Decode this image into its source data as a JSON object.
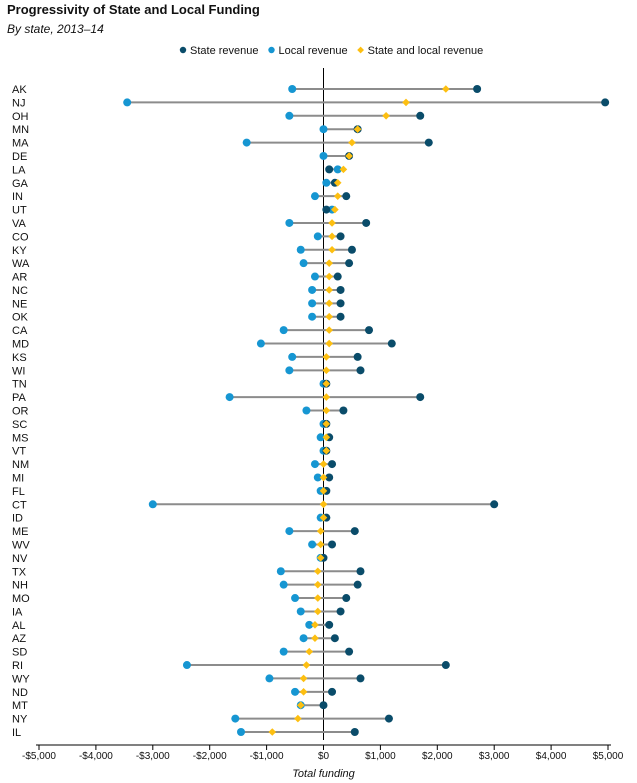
{
  "chart_data": {
    "type": "dumbbell",
    "title": "Progressivity of State and Local Funding",
    "subtitle": "By state, 2013–14",
    "xlabel": "Total funding",
    "ylabel": "",
    "xlim": [
      -5000,
      5000
    ],
    "x_ticks": [
      -5000,
      -4000,
      -3000,
      -2000,
      -1000,
      0,
      1000,
      2000,
      3000,
      4000,
      5000
    ],
    "x_tick_labels": [
      "-$5,000",
      "-$4,000",
      "-$3,000",
      "-$2,000",
      "-$1,000",
      "$0",
      "$1,000",
      "$2,000",
      "$3,000",
      "$4,000",
      "$5,000"
    ],
    "legend_position": "top-center",
    "grid": false,
    "colors": {
      "state": "#0a4c6a",
      "local": "#1696d2",
      "combined": "#fdbf11",
      "connector": "#8c8c8c"
    },
    "series": [
      {
        "name": "State revenue",
        "key": "state"
      },
      {
        "name": "Local revenue",
        "key": "local"
      },
      {
        "name": "State and local revenue",
        "key": "combined"
      }
    ],
    "states": [
      {
        "label": "AK",
        "state": 2700,
        "local": -550,
        "combined": 2150
      },
      {
        "label": "NJ",
        "state": 4950,
        "local": -3450,
        "combined": 1450
      },
      {
        "label": "OH",
        "state": 1700,
        "local": -600,
        "combined": 1100
      },
      {
        "label": "MN",
        "state": 600,
        "local": 0,
        "combined": 600
      },
      {
        "label": "MA",
        "state": 1850,
        "local": -1350,
        "combined": 500
      },
      {
        "label": "DE",
        "state": 450,
        "local": 0,
        "combined": 450
      },
      {
        "label": "LA",
        "state": 100,
        "local": 250,
        "combined": 350
      },
      {
        "label": "GA",
        "state": 200,
        "local": 50,
        "combined": 250
      },
      {
        "label": "IN",
        "state": 400,
        "local": -150,
        "combined": 250
      },
      {
        "label": "UT",
        "state": 50,
        "local": 150,
        "combined": 200
      },
      {
        "label": "VA",
        "state": 750,
        "local": -600,
        "combined": 150
      },
      {
        "label": "CO",
        "state": 300,
        "local": -100,
        "combined": 150
      },
      {
        "label": "KY",
        "state": 500,
        "local": -400,
        "combined": 150
      },
      {
        "label": "WA",
        "state": 450,
        "local": -350,
        "combined": 100
      },
      {
        "label": "AR",
        "state": 250,
        "local": -150,
        "combined": 100
      },
      {
        "label": "NC",
        "state": 300,
        "local": -200,
        "combined": 100
      },
      {
        "label": "NE",
        "state": 300,
        "local": -200,
        "combined": 100
      },
      {
        "label": "OK",
        "state": 300,
        "local": -200,
        "combined": 100
      },
      {
        "label": "CA",
        "state": 800,
        "local": -700,
        "combined": 100
      },
      {
        "label": "MD",
        "state": 1200,
        "local": -1100,
        "combined": 100
      },
      {
        "label": "KS",
        "state": 600,
        "local": -550,
        "combined": 50
      },
      {
        "label": "WI",
        "state": 650,
        "local": -600,
        "combined": 50
      },
      {
        "label": "TN",
        "state": 50,
        "local": 0,
        "combined": 50
      },
      {
        "label": "PA",
        "state": 1700,
        "local": -1650,
        "combined": 50
      },
      {
        "label": "OR",
        "state": 350,
        "local": -300,
        "combined": 50
      },
      {
        "label": "SC",
        "state": 50,
        "local": 0,
        "combined": 50
      },
      {
        "label": "MS",
        "state": 100,
        "local": -50,
        "combined": 50
      },
      {
        "label": "VT",
        "state": 50,
        "local": 0,
        "combined": 50
      },
      {
        "label": "NM",
        "state": 150,
        "local": -150,
        "combined": 0
      },
      {
        "label": "MI",
        "state": 100,
        "local": -100,
        "combined": 0
      },
      {
        "label": "FL",
        "state": 50,
        "local": -50,
        "combined": 0
      },
      {
        "label": "CT",
        "state": 3000,
        "local": -3000,
        "combined": 0
      },
      {
        "label": "ID",
        "state": 50,
        "local": -50,
        "combined": 0
      },
      {
        "label": "ME",
        "state": 550,
        "local": -600,
        "combined": -50
      },
      {
        "label": "WV",
        "state": 150,
        "local": -200,
        "combined": -50
      },
      {
        "label": "NV",
        "state": 0,
        "local": -50,
        "combined": -50
      },
      {
        "label": "TX",
        "state": 650,
        "local": -750,
        "combined": -100
      },
      {
        "label": "NH",
        "state": 600,
        "local": -700,
        "combined": -100
      },
      {
        "label": "MO",
        "state": 400,
        "local": -500,
        "combined": -100
      },
      {
        "label": "IA",
        "state": 300,
        "local": -400,
        "combined": -100
      },
      {
        "label": "AL",
        "state": 100,
        "local": -250,
        "combined": -150
      },
      {
        "label": "AZ",
        "state": 200,
        "local": -350,
        "combined": -150
      },
      {
        "label": "SD",
        "state": 450,
        "local": -700,
        "combined": -250
      },
      {
        "label": "RI",
        "state": 2150,
        "local": -2400,
        "combined": -300
      },
      {
        "label": "WY",
        "state": 650,
        "local": -950,
        "combined": -350
      },
      {
        "label": "ND",
        "state": 150,
        "local": -500,
        "combined": -350
      },
      {
        "label": "MT",
        "state": 0,
        "local": -400,
        "combined": -400
      },
      {
        "label": "NY",
        "state": 1150,
        "local": -1550,
        "combined": -450
      },
      {
        "label": "IL",
        "state": 550,
        "local": -1450,
        "combined": -900
      }
    ]
  }
}
